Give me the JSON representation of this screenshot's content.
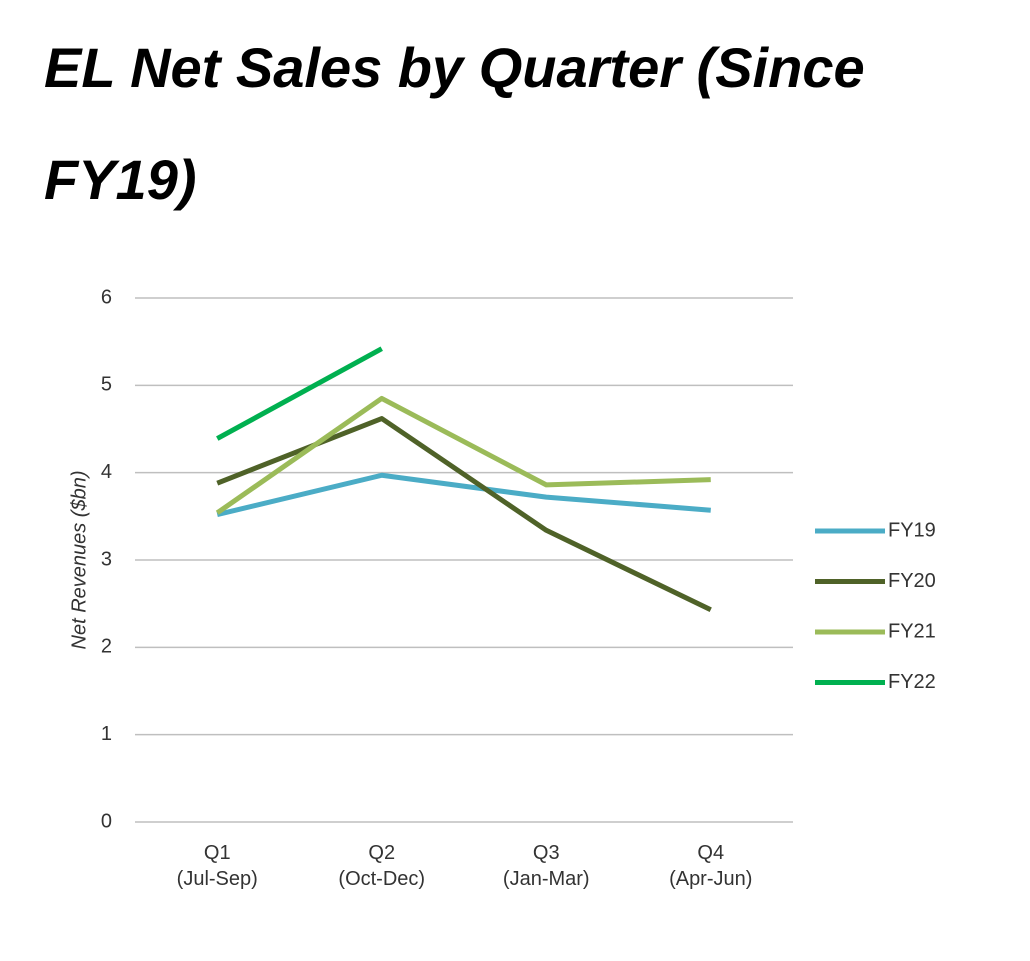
{
  "chart_data": {
    "type": "line",
    "title": "EL Net Sales by Quarter (Since FY19)",
    "ylabel": "Net Revenues ($bn)",
    "categories": [
      "Q1\n(Jul-Sep)",
      "Q2\n(Oct-Dec)",
      "Q3\n(Jan-Mar)",
      "Q4\n(Apr-Jun)"
    ],
    "series": [
      {
        "name": "FY19",
        "color": "#4bacc6",
        "values": [
          3.52,
          3.97,
          3.72,
          3.57
        ]
      },
      {
        "name": "FY20",
        "color": "#4f6228",
        "values": [
          3.88,
          4.62,
          3.34,
          2.43
        ]
      },
      {
        "name": "FY21",
        "color": "#9bbb59",
        "values": [
          3.54,
          4.85,
          3.86,
          3.92
        ]
      },
      {
        "name": "FY22",
        "color": "#00b050",
        "values": [
          4.39,
          5.42,
          null,
          null
        ]
      }
    ],
    "ylim": [
      0,
      6
    ],
    "yticks": [
      0,
      1,
      2,
      3,
      4,
      5,
      6
    ],
    "grid": true,
    "legend": "right"
  }
}
